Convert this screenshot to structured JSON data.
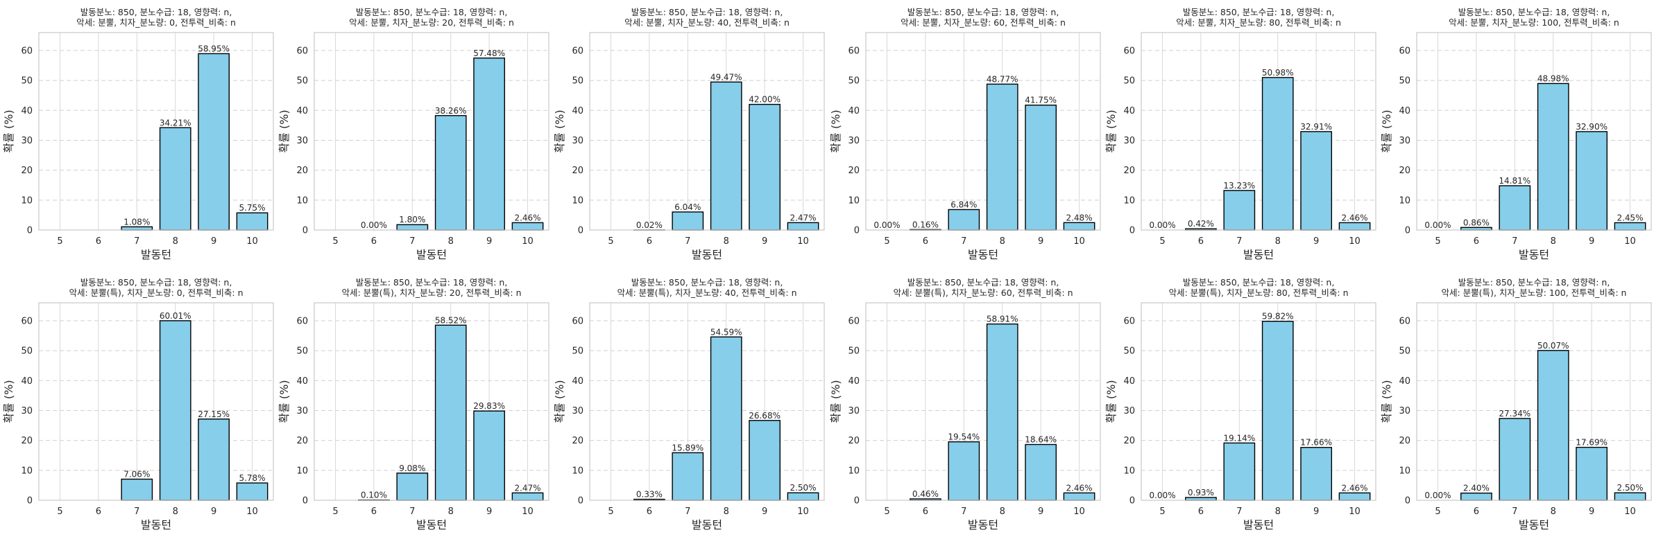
{
  "chart_data": [
    {
      "type": "bar",
      "title_lines": [
        "발동분노: 850, 분노수급: 18, 영향력: n,",
        "악세: 분뿔, 치자_분노량: 0, 전투력_비축: n"
      ],
      "xlabel": "발동턴",
      "ylabel": "확률 (%)",
      "categories": [
        "5",
        "6",
        "7",
        "8",
        "9",
        "10"
      ],
      "values": [
        null,
        null,
        1.08,
        34.21,
        58.95,
        5.75
      ],
      "labels": [
        "",
        "",
        "1.08%",
        "34.21%",
        "58.95%",
        "5.75%"
      ],
      "yticks": [
        "0",
        "10",
        "20",
        "30",
        "40",
        "50",
        "60"
      ],
      "ylim": [
        0,
        66
      ],
      "grid": true
    },
    {
      "type": "bar",
      "title_lines": [
        "발동분노: 850, 분노수급: 18, 영향력: n,",
        "악세: 분뿔, 치자_분노량: 20, 전투력_비축: n"
      ],
      "xlabel": "발동턴",
      "ylabel": "확률 (%)",
      "categories": [
        "5",
        "6",
        "7",
        "8",
        "9",
        "10"
      ],
      "values": [
        null,
        0.0,
        1.8,
        38.26,
        57.48,
        2.46
      ],
      "labels": [
        "",
        "0.00%",
        "1.80%",
        "38.26%",
        "57.48%",
        "2.46%"
      ],
      "yticks": [
        "0",
        "10",
        "20",
        "30",
        "40",
        "50",
        "60"
      ],
      "ylim": [
        0,
        66
      ],
      "grid": true
    },
    {
      "type": "bar",
      "title_lines": [
        "발동분노: 850, 분노수급: 18, 영향력: n,",
        "악세: 분뿔, 치자_분노량: 40, 전투력_비축: n"
      ],
      "xlabel": "발동턴",
      "ylabel": "확률 (%)",
      "categories": [
        "5",
        "6",
        "7",
        "8",
        "9",
        "10"
      ],
      "values": [
        null,
        0.02,
        6.04,
        49.47,
        42.0,
        2.47
      ],
      "labels": [
        "",
        "0.02%",
        "6.04%",
        "49.47%",
        "42.00%",
        "2.47%"
      ],
      "yticks": [
        "0",
        "10",
        "20",
        "30",
        "40",
        "50",
        "60"
      ],
      "ylim": [
        0,
        66
      ],
      "grid": true
    },
    {
      "type": "bar",
      "title_lines": [
        "발동분노: 850, 분노수급: 18, 영향력: n,",
        "악세: 분뿔, 치자_분노량: 60, 전투력_비축: n"
      ],
      "xlabel": "발동턴",
      "ylabel": "확률 (%)",
      "categories": [
        "5",
        "6",
        "7",
        "8",
        "9",
        "10"
      ],
      "values": [
        0.0,
        0.16,
        6.84,
        48.77,
        41.75,
        2.48
      ],
      "labels": [
        "0.00%",
        "0.16%",
        "6.84%",
        "48.77%",
        "41.75%",
        "2.48%"
      ],
      "yticks": [
        "0",
        "10",
        "20",
        "30",
        "40",
        "50",
        "60"
      ],
      "ylim": [
        0,
        66
      ],
      "grid": true
    },
    {
      "type": "bar",
      "title_lines": [
        "발동분노: 850, 분노수급: 18, 영향력: n,",
        "악세: 분뿔, 치자_분노량: 80, 전투력_비축: n"
      ],
      "xlabel": "발동턴",
      "ylabel": "확률 (%)",
      "categories": [
        "5",
        "6",
        "7",
        "8",
        "9",
        "10"
      ],
      "values": [
        0.0,
        0.42,
        13.23,
        50.98,
        32.91,
        2.46
      ],
      "labels": [
        "0.00%",
        "0.42%",
        "13.23%",
        "50.98%",
        "32.91%",
        "2.46%"
      ],
      "yticks": [
        "0",
        "10",
        "20",
        "30",
        "40",
        "50",
        "60"
      ],
      "ylim": [
        0,
        66
      ],
      "grid": true
    },
    {
      "type": "bar",
      "title_lines": [
        "발동분노: 850, 분노수급: 18, 영향력: n,",
        "악세: 분뿔, 치자_분노량: 100, 전투력_비축: n"
      ],
      "xlabel": "발동턴",
      "ylabel": "확률 (%)",
      "categories": [
        "5",
        "6",
        "7",
        "8",
        "9",
        "10"
      ],
      "values": [
        0.0,
        0.86,
        14.81,
        48.98,
        32.9,
        2.45
      ],
      "labels": [
        "0.00%",
        "0.86%",
        "14.81%",
        "48.98%",
        "32.90%",
        "2.45%"
      ],
      "yticks": [
        "0",
        "10",
        "20",
        "30",
        "40",
        "50",
        "60"
      ],
      "ylim": [
        0,
        66
      ],
      "grid": true
    },
    {
      "type": "bar",
      "title_lines": [
        "발동분노: 850, 분노수급: 18, 영향력: n,",
        "악세: 분뿔(특), 치자_분노량: 0, 전투력_비축: n"
      ],
      "xlabel": "발동턴",
      "ylabel": "확률 (%)",
      "categories": [
        "5",
        "6",
        "7",
        "8",
        "9",
        "10"
      ],
      "values": [
        null,
        null,
        7.06,
        60.01,
        27.15,
        5.78
      ],
      "labels": [
        "",
        "",
        "7.06%",
        "60.01%",
        "27.15%",
        "5.78%"
      ],
      "yticks": [
        "0",
        "10",
        "20",
        "30",
        "40",
        "50",
        "60"
      ],
      "ylim": [
        0,
        66
      ],
      "grid": true
    },
    {
      "type": "bar",
      "title_lines": [
        "발동분노: 850, 분노수급: 18, 영향력: n,",
        "악세: 분뿔(특), 치자_분노량: 20, 전투력_비축: n"
      ],
      "xlabel": "발동턴",
      "ylabel": "확률 (%)",
      "categories": [
        "5",
        "6",
        "7",
        "8",
        "9",
        "10"
      ],
      "values": [
        null,
        0.1,
        9.08,
        58.52,
        29.83,
        2.47
      ],
      "labels": [
        "",
        "0.10%",
        "9.08%",
        "58.52%",
        "29.83%",
        "2.47%"
      ],
      "yticks": [
        "0",
        "10",
        "20",
        "30",
        "40",
        "50",
        "60"
      ],
      "ylim": [
        0,
        66
      ],
      "grid": true
    },
    {
      "type": "bar",
      "title_lines": [
        "발동분노: 850, 분노수급: 18, 영향력: n,",
        "악세: 분뿔(특), 치자_분노량: 40, 전투력_비축: n"
      ],
      "xlabel": "발동턴",
      "ylabel": "확률 (%)",
      "categories": [
        "5",
        "6",
        "7",
        "8",
        "9",
        "10"
      ],
      "values": [
        null,
        0.33,
        15.89,
        54.59,
        26.68,
        2.5
      ],
      "labels": [
        "",
        "0.33%",
        "15.89%",
        "54.59%",
        "26.68%",
        "2.50%"
      ],
      "yticks": [
        "0",
        "10",
        "20",
        "30",
        "40",
        "50",
        "60"
      ],
      "ylim": [
        0,
        66
      ],
      "grid": true
    },
    {
      "type": "bar",
      "title_lines": [
        "발동분노: 850, 분노수급: 18, 영향력: n,",
        "악세: 분뿔(특), 치자_분노량: 60, 전투력_비축: n"
      ],
      "xlabel": "발동턴",
      "ylabel": "확률 (%)",
      "categories": [
        "5",
        "6",
        "7",
        "8",
        "9",
        "10"
      ],
      "values": [
        null,
        0.46,
        19.54,
        58.91,
        18.64,
        2.46
      ],
      "labels": [
        "",
        "0.46%",
        "19.54%",
        "58.91%",
        "18.64%",
        "2.46%"
      ],
      "yticks": [
        "0",
        "10",
        "20",
        "30",
        "40",
        "50",
        "60"
      ],
      "ylim": [
        0,
        66
      ],
      "grid": true
    },
    {
      "type": "bar",
      "title_lines": [
        "발동분노: 850, 분노수급: 18, 영향력: n,",
        "악세: 분뿔(특), 치자_분노량: 80, 전투력_비축: n"
      ],
      "xlabel": "발동턴",
      "ylabel": "확률 (%)",
      "categories": [
        "5",
        "6",
        "7",
        "8",
        "9",
        "10"
      ],
      "values": [
        0.0,
        0.93,
        19.14,
        59.82,
        17.66,
        2.46
      ],
      "labels": [
        "0.00%",
        "0.93%",
        "19.14%",
        "59.82%",
        "17.66%",
        "2.46%"
      ],
      "yticks": [
        "0",
        "10",
        "20",
        "30",
        "40",
        "50",
        "60"
      ],
      "ylim": [
        0,
        66
      ],
      "grid": true
    },
    {
      "type": "bar",
      "title_lines": [
        "발동분노: 850, 분노수급: 18, 영향력: n,",
        "악세: 분뿔(특), 치자_분노량: 100, 전투력_비축: n"
      ],
      "xlabel": "발동턴",
      "ylabel": "확률 (%)",
      "categories": [
        "5",
        "6",
        "7",
        "8",
        "9",
        "10"
      ],
      "values": [
        0.0,
        2.4,
        27.34,
        50.07,
        17.69,
        2.5
      ],
      "labels": [
        "0.00%",
        "2.40%",
        "27.34%",
        "50.07%",
        "17.69%",
        "2.50%"
      ],
      "yticks": [
        "0",
        "10",
        "20",
        "30",
        "40",
        "50",
        "60"
      ],
      "ylim": [
        0,
        66
      ],
      "grid": true
    }
  ]
}
